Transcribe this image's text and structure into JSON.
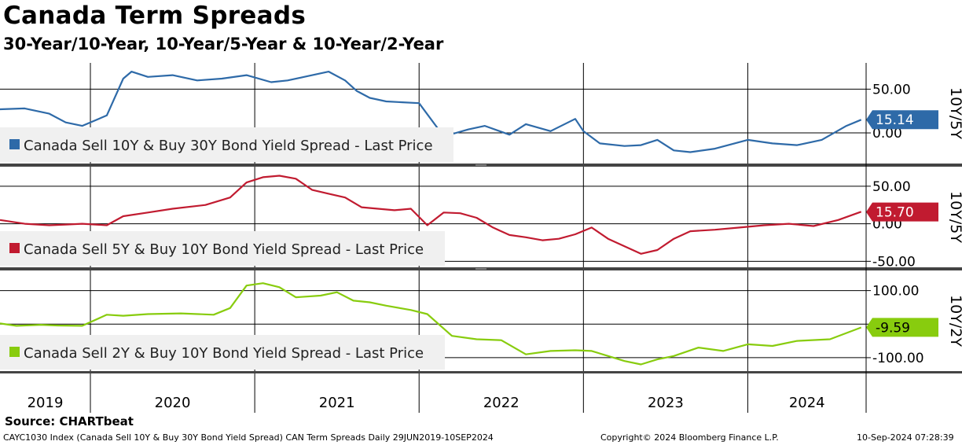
{
  "header": {
    "title": "Canada Term Spreads",
    "subtitle": "30-Year/10-Year, 10-Year/5-Year & 10-Year/2-Year"
  },
  "source": "Source: CHARTbeat",
  "footer": {
    "left": "CAYC1030 Index (Canada Sell 10Y & Buy 30Y Bond Yield Spread) CAN Term Spreads  Daily 29JUN2019-10SEP2024",
    "center": "Copyright© 2024 Bloomberg Finance L.P.",
    "right": "10-Sep-2024 07:28:39"
  },
  "chart_data": {
    "type": "line",
    "x_range": [
      2019.45,
      2024.72
    ],
    "x_ticks": [
      {
        "year": 2019,
        "label": "2019"
      },
      {
        "year": 2020,
        "label": "2020"
      },
      {
        "year": 2021,
        "label": "2021"
      },
      {
        "year": 2022,
        "label": "2022"
      },
      {
        "year": 2023,
        "label": "2023"
      },
      {
        "year": 2024,
        "label": "2024"
      }
    ],
    "panels": [
      {
        "name": "Canada Sell 10Y & Buy 30Y Bond Yield Spread - Last Price",
        "ylabel": "10Y/5Y",
        "color": "#2e6aa8",
        "ylim": [
          -35,
          80
        ],
        "yticks": [
          {
            "v": 50,
            "label": "50.00"
          },
          {
            "v": 0,
            "label": "0.00"
          }
        ],
        "last": {
          "value": 15.14,
          "label": "15.14",
          "text_color": "#ffffff"
        },
        "x": [
          2019.45,
          2019.6,
          2019.75,
          2019.85,
          2019.95,
          2020.1,
          2020.2,
          2020.25,
          2020.35,
          2020.5,
          2020.65,
          2020.8,
          2020.95,
          2021.1,
          2021.2,
          2021.3,
          2021.45,
          2021.55,
          2021.62,
          2021.7,
          2021.8,
          2021.9,
          2022.0,
          2022.15,
          2022.3,
          2022.4,
          2022.55,
          2022.65,
          2022.8,
          2022.95,
          2023.0,
          2023.1,
          2023.25,
          2023.35,
          2023.45,
          2023.55,
          2023.65,
          2023.8,
          2024.0,
          2024.15,
          2024.3,
          2024.45,
          2024.6,
          2024.69
        ],
        "y": [
          27,
          28,
          22,
          12,
          8,
          20,
          62,
          70,
          64,
          66,
          60,
          62,
          66,
          58,
          60,
          64,
          70,
          60,
          48,
          40,
          36,
          35,
          34,
          -4,
          4,
          8,
          -2,
          10,
          2,
          16,
          2,
          -12,
          -15,
          -14,
          -8,
          -20,
          -22,
          -18,
          -8,
          -12,
          -14,
          -8,
          8,
          15
        ]
      },
      {
        "name": "Canada Sell 5Y & Buy 10Y Bond Yield Spread - Last Price",
        "ylabel": "10Y/5Y",
        "color": "#c11b30",
        "ylim": [
          -58,
          76
        ],
        "yticks": [
          {
            "v": 50,
            "label": "50.00"
          },
          {
            "v": 0,
            "label": "0.00"
          },
          {
            "v": -50,
            "label": "-50.00"
          }
        ],
        "last": {
          "value": 15.7,
          "label": "15.70",
          "text_color": "#ffffff"
        },
        "x": [
          2019.45,
          2019.6,
          2019.75,
          2019.85,
          2019.95,
          2020.1,
          2020.2,
          2020.35,
          2020.5,
          2020.7,
          2020.85,
          2020.95,
          2021.05,
          2021.15,
          2021.25,
          2021.35,
          2021.45,
          2021.55,
          2021.65,
          2021.75,
          2021.85,
          2021.95,
          2022.05,
          2022.15,
          2022.25,
          2022.35,
          2022.45,
          2022.55,
          2022.65,
          2022.75,
          2022.85,
          2022.95,
          2023.05,
          2023.15,
          2023.25,
          2023.35,
          2023.45,
          2023.55,
          2023.65,
          2023.8,
          2023.95,
          2024.1,
          2024.25,
          2024.4,
          2024.55,
          2024.69
        ],
        "y": [
          5,
          0,
          -2,
          -1,
          0,
          -2,
          10,
          15,
          20,
          25,
          35,
          55,
          62,
          64,
          60,
          45,
          40,
          35,
          22,
          20,
          18,
          20,
          -2,
          15,
          14,
          8,
          -5,
          -15,
          -18,
          -22,
          -20,
          -14,
          -5,
          -20,
          -30,
          -40,
          -35,
          -20,
          -10,
          -8,
          -5,
          -2,
          0,
          -3,
          5,
          16
        ]
      },
      {
        "name": "Canada Sell 2Y & Buy 10Y Bond Yield Spread - Last Price",
        "ylabel": "10Y/2Y",
        "color": "#88cc0e",
        "ylim": [
          -140,
          160
        ],
        "yticks": [
          {
            "v": 100,
            "label": "100.00"
          },
          {
            "v": 0,
            "label": ""
          },
          {
            "v": -100,
            "label": "-100.00"
          }
        ],
        "last": {
          "value": -9.59,
          "label": "-9.59",
          "text_color": "#000000"
        },
        "x": [
          2019.45,
          2019.55,
          2019.7,
          2019.8,
          2019.95,
          2020.1,
          2020.2,
          2020.35,
          2020.55,
          2020.75,
          2020.85,
          2020.95,
          2021.05,
          2021.15,
          2021.25,
          2021.4,
          2021.5,
          2021.6,
          2021.7,
          2021.8,
          2021.95,
          2022.05,
          2022.2,
          2022.35,
          2022.5,
          2022.65,
          2022.8,
          2022.95,
          2023.05,
          2023.15,
          2023.25,
          2023.35,
          2023.45,
          2023.55,
          2023.7,
          2023.85,
          2024.0,
          2024.15,
          2024.3,
          2024.5,
          2024.69
        ],
        "y": [
          2,
          -5,
          -2,
          -4,
          -5,
          28,
          25,
          30,
          32,
          28,
          48,
          115,
          122,
          110,
          80,
          85,
          95,
          70,
          65,
          55,
          42,
          30,
          -35,
          -45,
          -48,
          -90,
          -80,
          -78,
          -80,
          -95,
          -110,
          -120,
          -105,
          -95,
          -70,
          -80,
          -60,
          -65,
          -50,
          -45,
          -10
        ]
      }
    ]
  }
}
